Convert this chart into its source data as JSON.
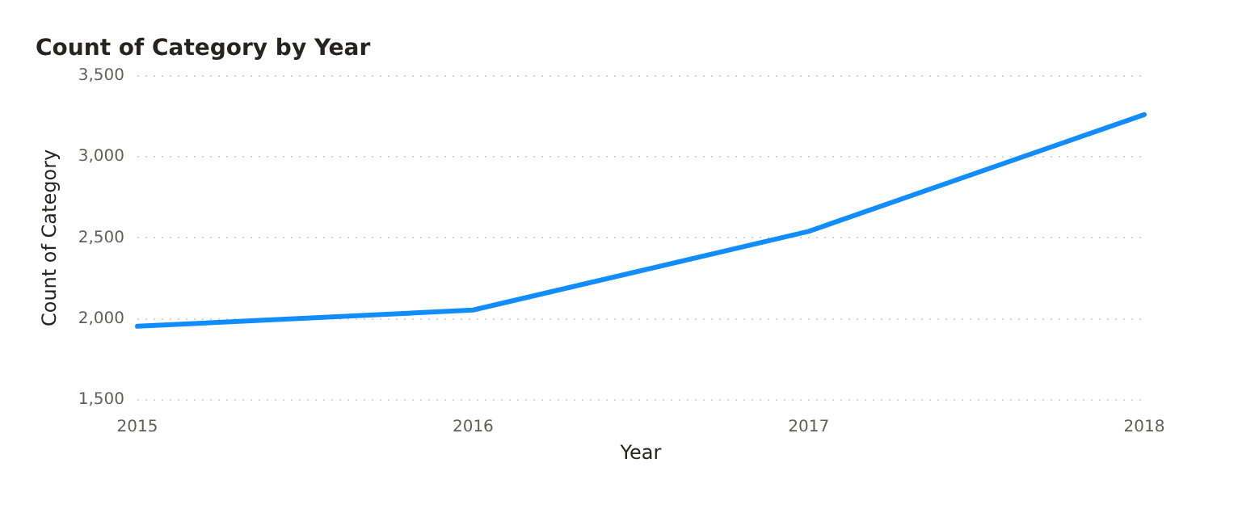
{
  "chart_data": {
    "type": "line",
    "title": "Count of Category by Year",
    "xlabel": "Year",
    "ylabel": "Count of Category",
    "categories": [
      "2015",
      "2016",
      "2017",
      "2018"
    ],
    "series": [
      {
        "color": "#118dff",
        "values": [
          1955,
          2055,
          2540,
          3260
        ]
      }
    ],
    "ylim": [
      1500,
      3500
    ],
    "yticks": [
      {
        "value": 1500,
        "label": "1,500"
      },
      {
        "value": 2000,
        "label": "2,000"
      },
      {
        "value": 2500,
        "label": "2,500"
      },
      {
        "value": 3000,
        "label": "3,000"
      },
      {
        "value": 3500,
        "label": "3,500"
      }
    ],
    "grid": "y",
    "legend": false,
    "marker": "none",
    "line_style": "solid"
  }
}
